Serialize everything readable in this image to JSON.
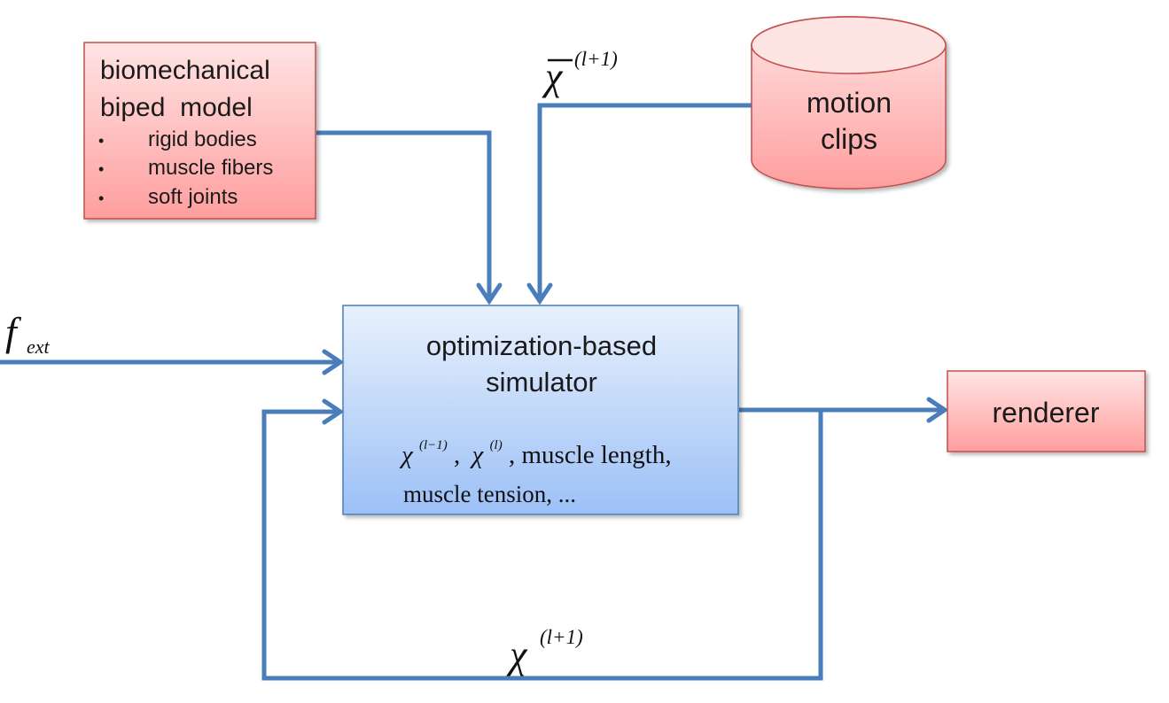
{
  "colors": {
    "connector": "#4a7ebb",
    "red_box_top": "#ffe4e4",
    "red_box_bottom": "#ff9e9e",
    "red_border": "#c0504d",
    "blue_box_top": "#e8f1fd",
    "blue_box_bottom": "#9cc0f7",
    "blue_border": "#4a7ebb"
  },
  "nodes": {
    "model": {
      "title_line1": "biomechanical",
      "title_line2": "biped  model",
      "bullets": [
        "rigid bodies",
        "muscle fibers",
        "soft joints"
      ],
      "bullet_char": "•"
    },
    "motion_clips": {
      "line1": "motion",
      "line2": "clips"
    },
    "simulator": {
      "title_line1": "optimization-based",
      "title_line2": "simulator",
      "state_symbol": "χ",
      "state_prev_sup": "(l−1)",
      "state_cur_sup": "(l)",
      "comma": ",",
      "detail_tail": ", muscle length,",
      "detail_line2": "muscle tension, ..."
    },
    "renderer": {
      "label": "renderer"
    }
  },
  "labels": {
    "external_force": {
      "symbol": "f",
      "subscript": "ext"
    },
    "reference_motion": {
      "symbol": "χ",
      "superscript": "(l+1)"
    },
    "feedback_state": {
      "symbol": "χ",
      "superscript": "(l+1)"
    }
  }
}
